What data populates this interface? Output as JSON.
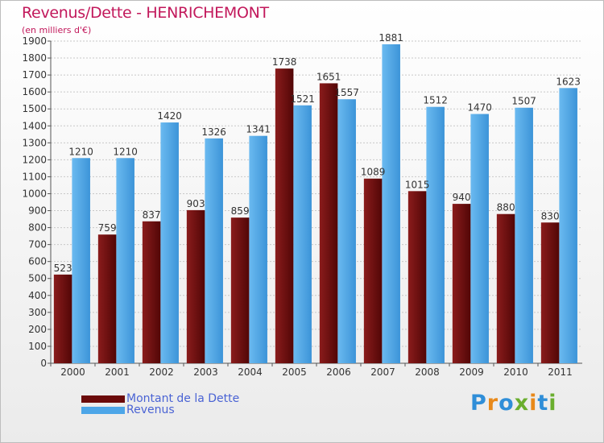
{
  "title": "Revenus/Dette - HENRICHEMONT",
  "subtitle": "(en milliers d'€)",
  "logo": "Proxiti",
  "colors": {
    "dette": "#6b0a0a",
    "revenus": "#4da6e8",
    "title": "#c2185b",
    "legend_text": "#4a63d4"
  },
  "chart_data": {
    "type": "bar",
    "title": "Revenus/Dette - HENRICHEMONT",
    "ylabel": "(en milliers d'€)",
    "xlabel": "",
    "categories": [
      "2000",
      "2001",
      "2002",
      "2003",
      "2004",
      "2005",
      "2006",
      "2007",
      "2008",
      "2009",
      "2010",
      "2011"
    ],
    "series": [
      {
        "name": "Montant de la Dette",
        "color": "#6b0a0a",
        "values": [
          523,
          759,
          837,
          903,
          859,
          1738,
          1651,
          1089,
          1015,
          940,
          880,
          830
        ]
      },
      {
        "name": "Revenus",
        "color": "#4da6e8",
        "values": [
          1210,
          1210,
          1420,
          1326,
          1341,
          1521,
          1557,
          1881,
          1512,
          1470,
          1507,
          1623
        ]
      }
    ],
    "ylim": [
      0,
      1900
    ],
    "yticks": [
      0,
      100,
      200,
      300,
      400,
      500,
      600,
      700,
      800,
      900,
      1000,
      1100,
      1200,
      1300,
      1400,
      1500,
      1600,
      1700,
      1800,
      1900
    ],
    "grid": true,
    "legend": "bottom-left"
  }
}
